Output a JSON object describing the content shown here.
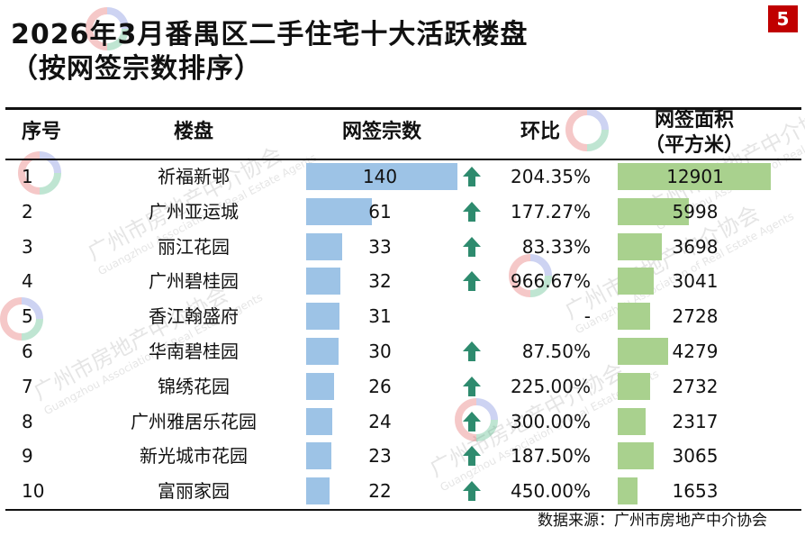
{
  "title_line1": "2026年3月番禺区二手住宅十大活跃楼盘",
  "title_line2": "（按网签宗数排序）",
  "page_number": "5",
  "headers": {
    "rank": "序号",
    "estate": "楼盘",
    "deals": "网签宗数",
    "mom": "环比",
    "area_line1": "网签面积",
    "area_line2": "（平方米）"
  },
  "rows": [
    {
      "rank": "1",
      "name": "祈福新邨",
      "deals": "140",
      "mom_dir": "up",
      "mom": "204.35%",
      "area": "12901"
    },
    {
      "rank": "2",
      "name": "广州亚运城",
      "deals": "61",
      "mom_dir": "up",
      "mom": "177.27%",
      "area": "5998"
    },
    {
      "rank": "3",
      "name": "丽江花园",
      "deals": "33",
      "mom_dir": "up",
      "mom": "83.33%",
      "area": "3698"
    },
    {
      "rank": "4",
      "name": "广州碧桂园",
      "deals": "32",
      "mom_dir": "up",
      "mom": "966.67%",
      "area": "3041"
    },
    {
      "rank": "5",
      "name": "香江翰盛府",
      "deals": "31",
      "mom_dir": "none",
      "mom": "-",
      "area": "2728"
    },
    {
      "rank": "6",
      "name": "华南碧桂园",
      "deals": "30",
      "mom_dir": "up",
      "mom": "87.50%",
      "area": "4279"
    },
    {
      "rank": "7",
      "name": "锦绣花园",
      "deals": "26",
      "mom_dir": "up",
      "mom": "225.00%",
      "area": "2732"
    },
    {
      "rank": "8",
      "name": "广州雅居乐花园",
      "deals": "24",
      "mom_dir": "up",
      "mom": "300.00%",
      "area": "2317"
    },
    {
      "rank": "9",
      "name": "新光城市花园",
      "deals": "23",
      "mom_dir": "up",
      "mom": "187.50%",
      "area": "3065"
    },
    {
      "rank": "10",
      "name": "富丽家园",
      "deals": "22",
      "mom_dir": "up",
      "mom": "450.00%",
      "area": "1653"
    }
  ],
  "source": "数据来源：广州市房地产中介协会",
  "watermark": {
    "cn": "广州市房地产中介协会",
    "en": "Guangzhou Association of Real Estate Agents"
  },
  "colors": {
    "deals_bar": "#9dc3e6",
    "area_bar": "#a9d18e",
    "arrow": "#2e8b6e",
    "page_badge": "#c00000"
  },
  "chart_data": {
    "type": "table",
    "columns": [
      "序号",
      "楼盘",
      "网签宗数",
      "环比",
      "网签面积（平方米）"
    ],
    "categories": [
      "祈福新邨",
      "广州亚运城",
      "丽江花园",
      "广州碧桂园",
      "香江翰盛府",
      "华南碧桂园",
      "锦绣花园",
      "广州雅居乐花园",
      "新光城市花园",
      "富丽家园"
    ],
    "series": [
      {
        "values": [
          140,
          61,
          33,
          32,
          31,
          30,
          26,
          24,
          23,
          22
        ]
      },
      {
        "values": [
          204.35,
          177.27,
          83.33,
          966.67,
          null,
          87.5,
          225.0,
          300.0,
          187.5,
          450.0
        ]
      },
      {
        "values": [
          12901,
          5998,
          3698,
          3041,
          2728,
          4279,
          2732,
          2317,
          3065,
          1653
        ]
      }
    ],
    "deals_max": 140,
    "area_max": 12901
  }
}
